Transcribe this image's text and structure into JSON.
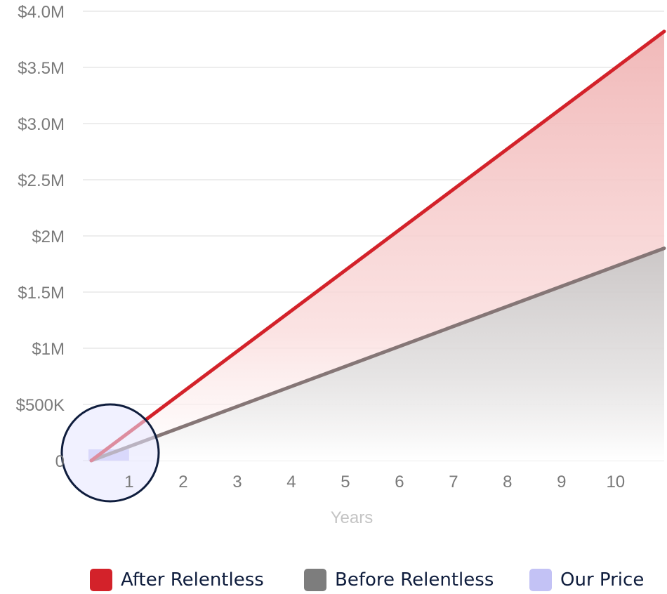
{
  "chart_data": {
    "type": "area",
    "title": "",
    "xlabel": "Years",
    "ylabel": "",
    "x_ticks": [
      "1",
      "2",
      "3",
      "4",
      "5",
      "6",
      "7",
      "8",
      "9",
      "10"
    ],
    "y_ticks": [
      {
        "value": 0,
        "label": "0"
      },
      {
        "value": 500000,
        "label": "$500K"
      },
      {
        "value": 1000000,
        "label": "$1M"
      },
      {
        "value": 1500000,
        "label": "$1.5M"
      },
      {
        "value": 2000000,
        "label": "$2M"
      },
      {
        "value": 2500000,
        "label": "$2.5M"
      },
      {
        "value": 3000000,
        "label": "$3.0M"
      },
      {
        "value": 3500000,
        "label": "$3.5M"
      },
      {
        "value": 4000000,
        "label": "$4.0M"
      }
    ],
    "xlim": [
      0,
      10.6
    ],
    "ylim": [
      0,
      4000000
    ],
    "grid": true,
    "series": [
      {
        "name": "After Relentless",
        "color": "#d3222a",
        "x": [
          0,
          10.6
        ],
        "values": [
          0,
          3820000
        ]
      },
      {
        "name": "Before Relentless",
        "color": "#7d7d7d",
        "line_color": "#857676",
        "x": [
          0,
          10.6
        ],
        "values": [
          0,
          1890000
        ]
      }
    ],
    "our_price": {
      "name": "Our Price",
      "color": "#c3c2f5",
      "x_start": 0,
      "x_end": 0.7,
      "value": 100000
    },
    "legend_position": "bottom-center"
  },
  "legend": {
    "after_label": "After Relentless",
    "before_label": "Before Relentless",
    "price_label": "Our Price"
  }
}
